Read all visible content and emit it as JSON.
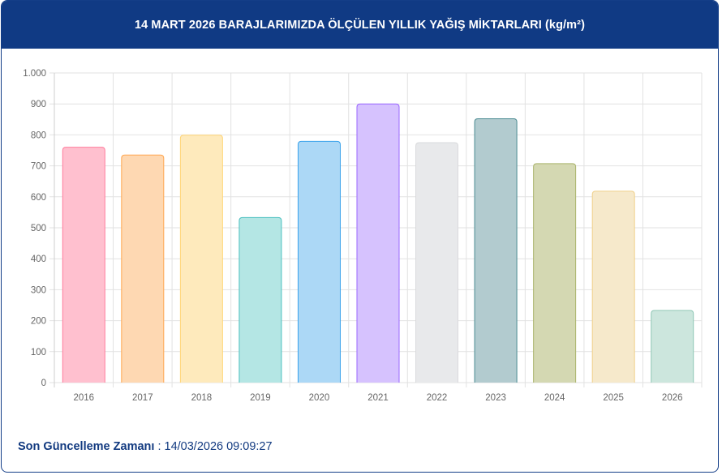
{
  "header": {
    "title": "14 MART 2026 BARAJLARIMIZDA ÖLÇÜLEN YILLIK YAĞIŞ MİKTARLARI (kg/m²)"
  },
  "footer": {
    "label": "Son Güncelleme Zamanı",
    "separator": " : ",
    "value": "14/03/2026 09:09:27"
  },
  "chart_data": {
    "type": "bar",
    "title": "14 MART 2026 BARAJLARIMIZDA ÖLÇÜLEN YILLIK YAĞIŞ MİKTARLARI (kg/m²)",
    "categories": [
      "2016",
      "2017",
      "2018",
      "2019",
      "2020",
      "2021",
      "2022",
      "2023",
      "2024",
      "2025",
      "2026"
    ],
    "values": [
      760,
      735,
      799,
      533,
      779,
      900,
      775,
      852,
      707,
      618,
      233
    ],
    "ylim": [
      0,
      1000
    ],
    "yticks": [
      0,
      100,
      200,
      300,
      400,
      500,
      600,
      700,
      800,
      900,
      1000
    ],
    "ytick_labels": [
      "0",
      "100",
      "200",
      "300",
      "400",
      "500",
      "600",
      "700",
      "800",
      "900",
      "1.000"
    ],
    "grid": true,
    "legend": "none",
    "colors": {
      "fill": [
        "#ffc0cf",
        "#fed8b2",
        "#feeabc",
        "#b4e6e4",
        "#acd8f6",
        "#d6c2fe",
        "#e8e9eb",
        "#b2cbcf",
        "#d4d8b2",
        "#f6e9cb",
        "#cce6dd"
      ],
      "border": [
        "#ff7c9c",
        "#ffa64f",
        "#ffd679",
        "#4bc0c0",
        "#39a2eb",
        "#9a66ff",
        "#d9dadc",
        "#4b8b92",
        "#a9b36a",
        "#f0d08a",
        "#8fc7b5"
      ]
    }
  }
}
